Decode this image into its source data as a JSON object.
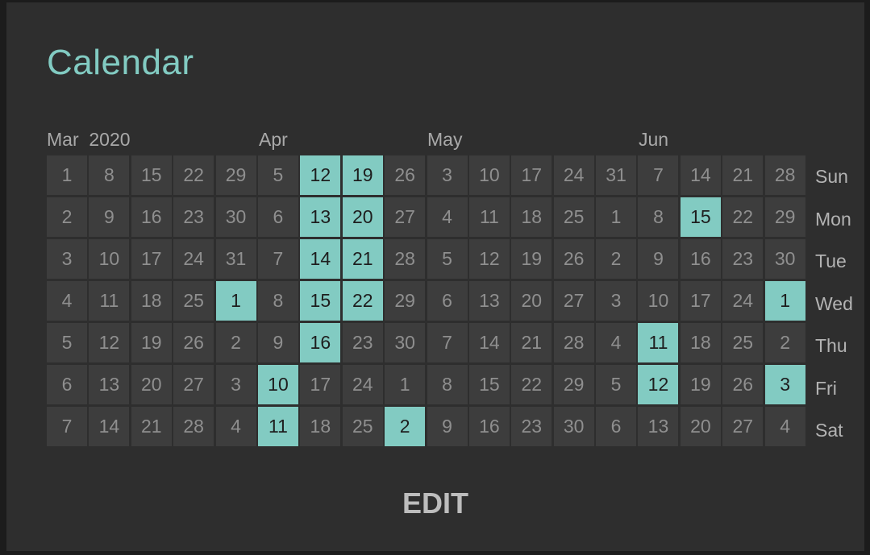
{
  "title": "Calendar",
  "months": [
    {
      "label": "Mar  2020",
      "col": 0
    },
    {
      "label": "Apr",
      "col": 5
    },
    {
      "label": "May",
      "col": 9
    },
    {
      "label": "Jun",
      "col": 14
    }
  ],
  "days": [
    "Sun",
    "Mon",
    "Tue",
    "Wed",
    "Thu",
    "Fri",
    "Sat"
  ],
  "rows": [
    [
      "1",
      "8",
      "15",
      "22",
      "29",
      "5",
      "12",
      "19",
      "26",
      "3",
      "10",
      "17",
      "24",
      "31",
      "7",
      "14",
      "21",
      "28"
    ],
    [
      "2",
      "9",
      "16",
      "23",
      "30",
      "6",
      "13",
      "20",
      "27",
      "4",
      "11",
      "18",
      "25",
      "1",
      "8",
      "15",
      "22",
      "29"
    ],
    [
      "3",
      "10",
      "17",
      "24",
      "31",
      "7",
      "14",
      "21",
      "28",
      "5",
      "12",
      "19",
      "26",
      "2",
      "9",
      "16",
      "23",
      "30"
    ],
    [
      "4",
      "11",
      "18",
      "25",
      "1",
      "8",
      "15",
      "22",
      "29",
      "6",
      "13",
      "20",
      "27",
      "3",
      "10",
      "17",
      "24",
      "1"
    ],
    [
      "5",
      "12",
      "19",
      "26",
      "2",
      "9",
      "16",
      "23",
      "30",
      "7",
      "14",
      "21",
      "28",
      "4",
      "11",
      "18",
      "25",
      "2"
    ],
    [
      "6",
      "13",
      "20",
      "27",
      "3",
      "10",
      "17",
      "24",
      "1",
      "8",
      "15",
      "22",
      "29",
      "5",
      "12",
      "19",
      "26",
      "3"
    ],
    [
      "7",
      "14",
      "21",
      "28",
      "4",
      "11",
      "18",
      "25",
      "2",
      "9",
      "16",
      "23",
      "30",
      "6",
      "13",
      "20",
      "27",
      "4"
    ]
  ],
  "highlighted": [
    [
      0,
      6
    ],
    [
      0,
      7
    ],
    [
      1,
      6
    ],
    [
      1,
      7
    ],
    [
      1,
      15
    ],
    [
      2,
      6
    ],
    [
      2,
      7
    ],
    [
      3,
      4
    ],
    [
      3,
      6
    ],
    [
      3,
      7
    ],
    [
      3,
      17
    ],
    [
      4,
      6
    ],
    [
      4,
      14
    ],
    [
      5,
      5
    ],
    [
      5,
      14
    ],
    [
      5,
      17
    ],
    [
      6,
      5
    ],
    [
      6,
      8
    ]
  ],
  "colors": {
    "accent": "#82cbc2",
    "cell": "#3d3d3d",
    "panel": "#2e2e2e"
  },
  "edit_label": "EDIT"
}
